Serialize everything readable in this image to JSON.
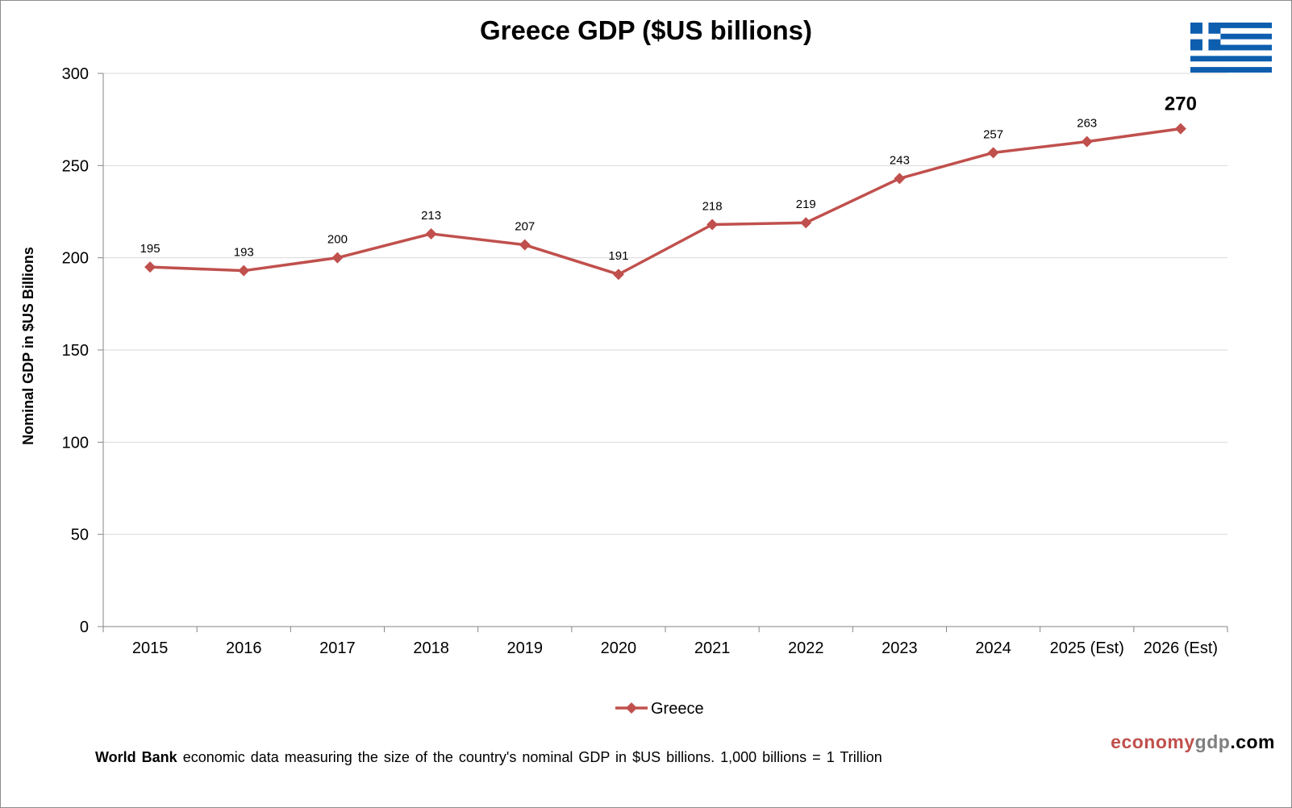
{
  "chart_data": {
    "type": "line",
    "title": "Greece GDP ($US billions)",
    "ylabel": "Nominal GDP in $US Billions",
    "xlabel": "",
    "categories": [
      "2015",
      "2016",
      "2017",
      "2018",
      "2019",
      "2020",
      "2021",
      "2022",
      "2023",
      "2024",
      "2025 (Est)",
      "2026 (Est)"
    ],
    "series": [
      {
        "name": "Greece",
        "values": [
          195,
          193,
          200,
          213,
          207,
          191,
          218,
          219,
          243,
          257,
          263,
          270
        ],
        "labels": [
          "195",
          "193",
          "200",
          "213",
          "207",
          "191",
          "218",
          "219",
          "243",
          "257",
          "263",
          "270"
        ],
        "color": "#c0504d"
      }
    ],
    "ylim": [
      0,
      300
    ],
    "yticks": [
      0,
      50,
      100,
      150,
      200,
      250,
      300
    ],
    "grid": true,
    "legend": "bottom",
    "highlight_last_label": true
  },
  "footer": {
    "note_bold": "World Bank",
    "note_text": " economic data  measuring  the size of the country's nominal  GDP in $US billions.  1,000 billions = 1 Trillion"
  },
  "brand": {
    "part1": "economy",
    "part2": "gdp",
    "part3": ".com"
  },
  "colors": {
    "series": "#c0504d",
    "grid": "#d9d9d9",
    "axis": "#868686",
    "flag_blue": "#0d5eaf"
  },
  "flag": {
    "icon": "greece-flag-icon"
  }
}
